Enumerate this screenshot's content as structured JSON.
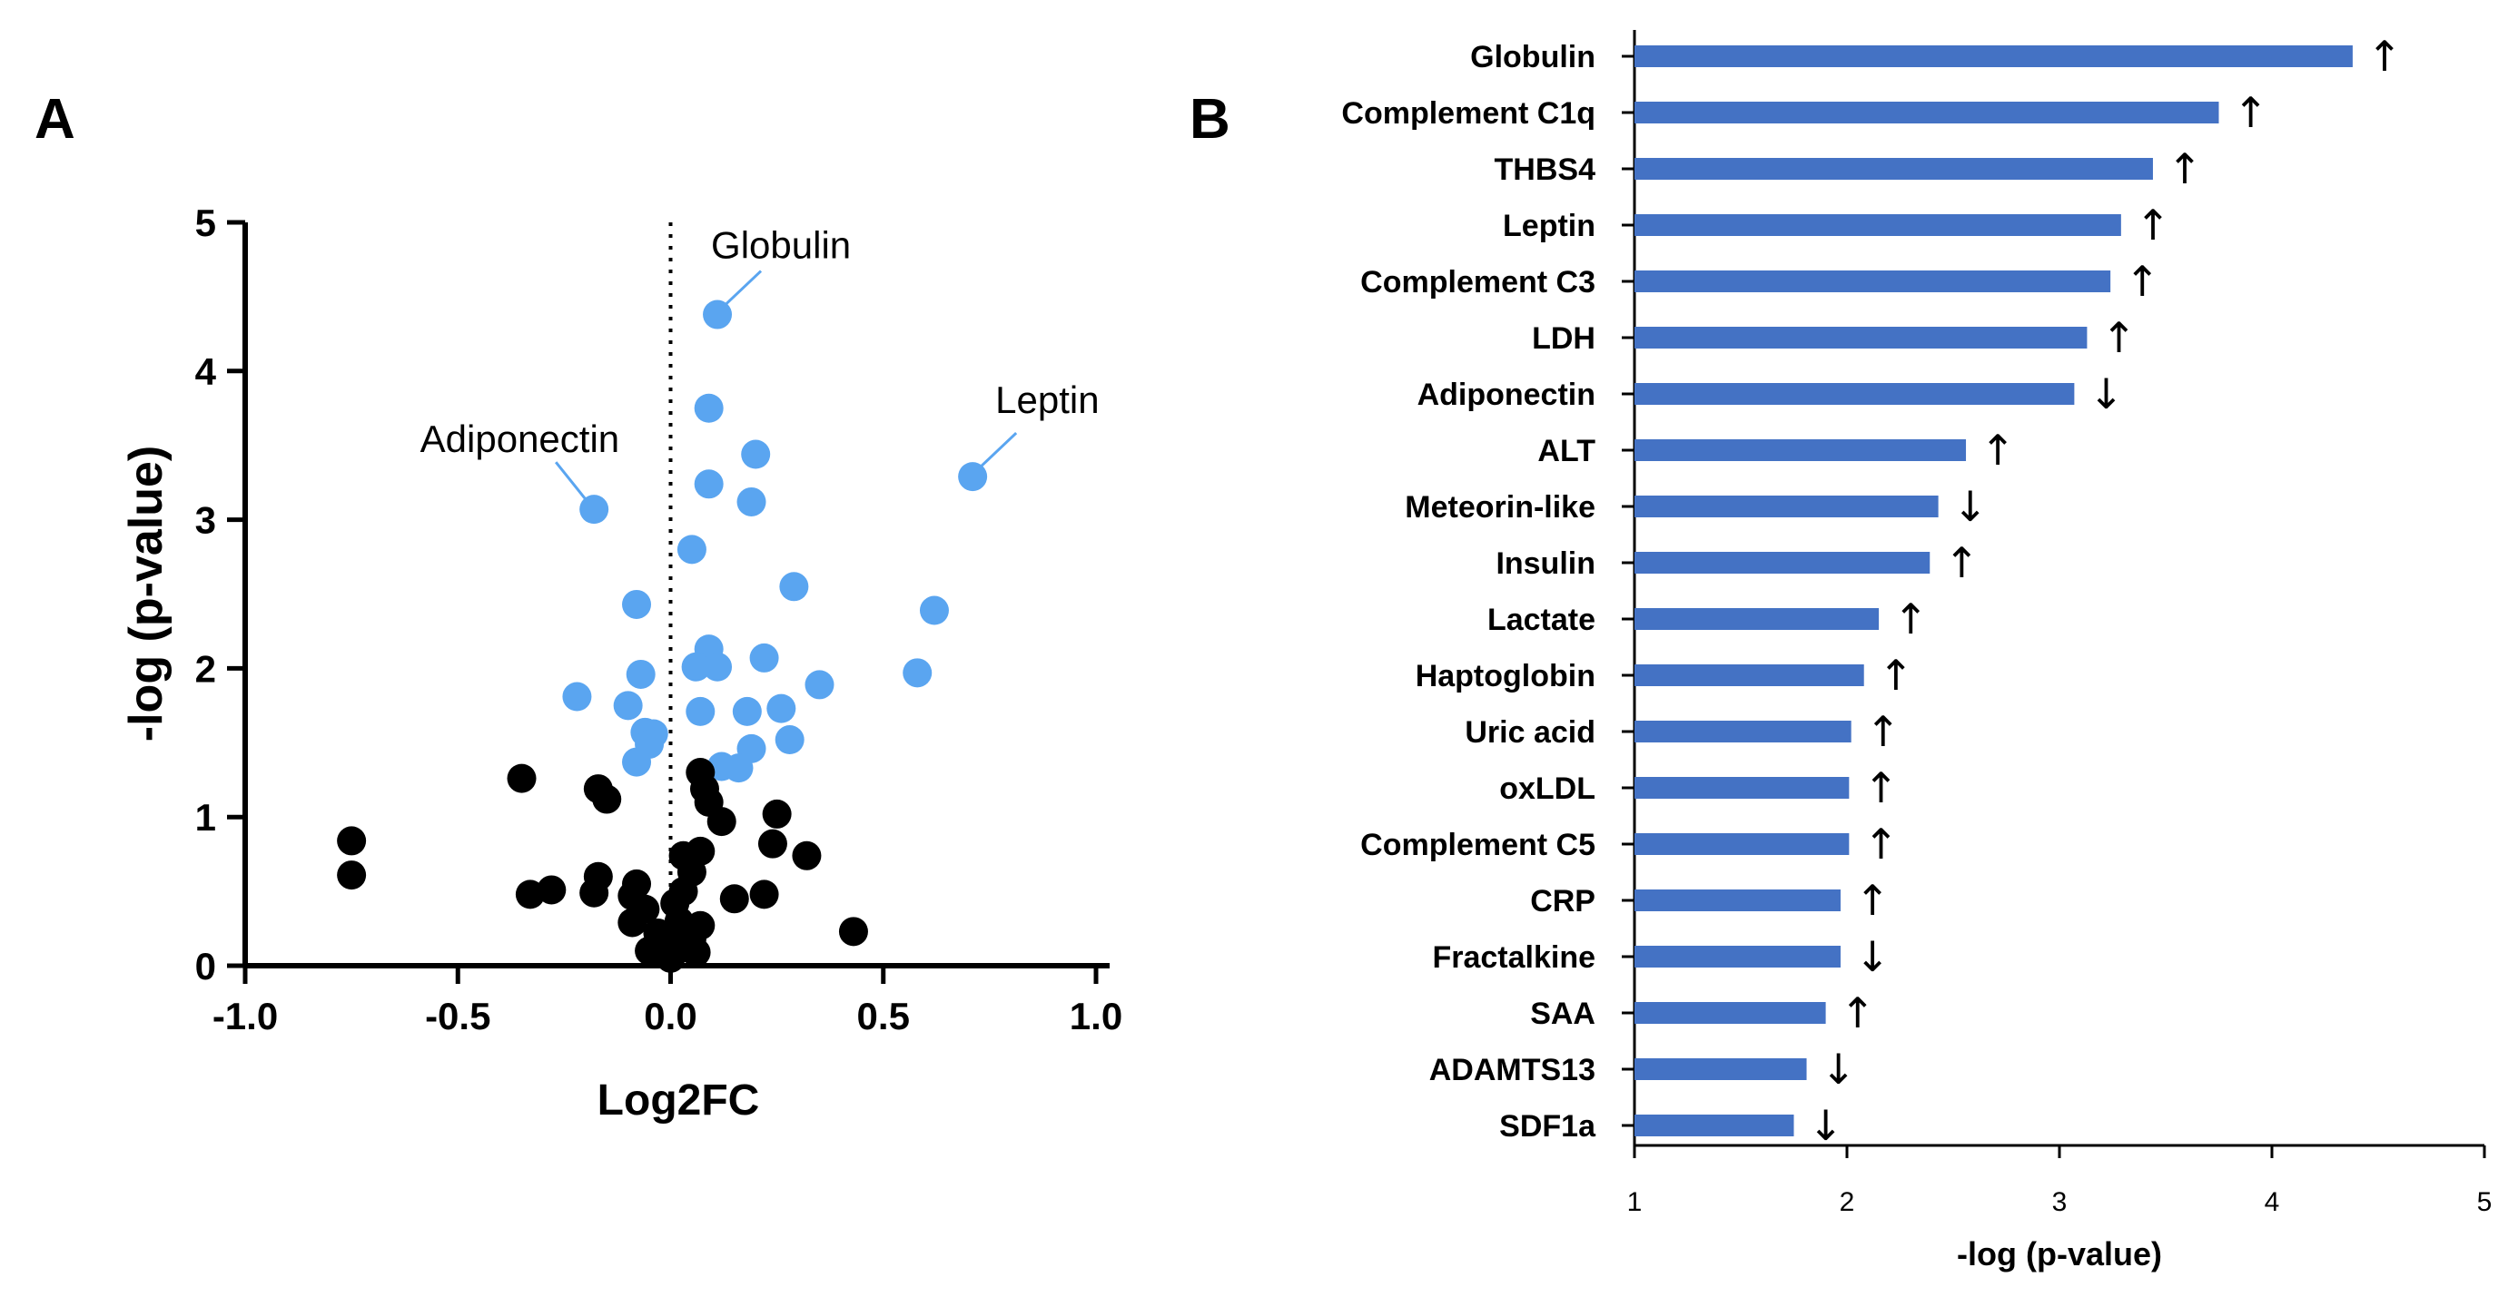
{
  "chart_data": [
    {
      "type": "scatter",
      "panel": "A",
      "xlabel": "Log2FC",
      "ylabel": "-log (p-value)",
      "xlim": [
        -1.0,
        1.0
      ],
      "ylim": [
        0,
        5
      ],
      "xticks": [
        "-1.0",
        "-0.5",
        "0.0",
        "0.5",
        "1.0"
      ],
      "yticks": [
        "0",
        "1",
        "2",
        "3",
        "4",
        "5"
      ],
      "reference_line": {
        "x": 0.0,
        "style": "dotted"
      },
      "colors": {
        "significant": "#5aa5f0",
        "nonsignificant": "#000000",
        "callout": "#5aa5f0"
      },
      "annotations": [
        {
          "text": "Globulin",
          "x": 0.11,
          "y": 4.38,
          "position": "above-right"
        },
        {
          "text": "Leptin",
          "x": 0.71,
          "y": 3.29,
          "position": "above-right"
        },
        {
          "text": "Adiponectin",
          "x": -0.18,
          "y": 3.07,
          "position": "above-left"
        }
      ],
      "series": [
        {
          "name": "significant",
          "points": [
            [
              0.11,
              4.38
            ],
            [
              0.09,
              3.75
            ],
            [
              0.2,
              3.44
            ],
            [
              0.09,
              3.24
            ],
            [
              0.19,
              3.12
            ],
            [
              0.71,
              3.29
            ],
            [
              -0.18,
              3.07
            ],
            [
              0.05,
              2.8
            ],
            [
              0.29,
              2.55
            ],
            [
              0.62,
              2.39
            ],
            [
              -0.08,
              2.43
            ],
            [
              0.09,
              2.13
            ],
            [
              0.06,
              2.01
            ],
            [
              0.11,
              2.01
            ],
            [
              0.22,
              2.07
            ],
            [
              0.58,
              1.97
            ],
            [
              0.35,
              1.89
            ],
            [
              -0.07,
              1.96
            ],
            [
              -0.22,
              1.81
            ],
            [
              -0.1,
              1.75
            ],
            [
              0.07,
              1.71
            ],
            [
              0.18,
              1.71
            ],
            [
              0.26,
              1.73
            ],
            [
              -0.06,
              1.57
            ],
            [
              -0.04,
              1.56
            ],
            [
              -0.05,
              1.49
            ],
            [
              0.19,
              1.46
            ],
            [
              0.28,
              1.52
            ],
            [
              -0.08,
              1.37
            ],
            [
              0.12,
              1.34
            ],
            [
              0.16,
              1.33
            ]
          ]
        },
        {
          "name": "nonsignificant",
          "points": [
            [
              -0.75,
              0.84
            ],
            [
              -0.75,
              0.61
            ],
            [
              -0.35,
              1.26
            ],
            [
              -0.17,
              1.19
            ],
            [
              -0.15,
              1.12
            ],
            [
              -0.33,
              0.48
            ],
            [
              -0.28,
              0.51
            ],
            [
              -0.17,
              0.6
            ],
            [
              -0.18,
              0.49
            ],
            [
              -0.08,
              0.55
            ],
            [
              -0.09,
              0.47
            ],
            [
              -0.06,
              0.38
            ],
            [
              -0.09,
              0.29
            ],
            [
              -0.03,
              0.22
            ],
            [
              -0.05,
              0.1
            ],
            [
              0.07,
              1.3
            ],
            [
              0.08,
              1.19
            ],
            [
              0.09,
              1.1
            ],
            [
              0.12,
              0.97
            ],
            [
              0.07,
              0.77
            ],
            [
              0.03,
              0.74
            ],
            [
              0.05,
              0.63
            ],
            [
              0.03,
              0.5
            ],
            [
              0.01,
              0.42
            ],
            [
              0.02,
              0.3
            ],
            [
              0.07,
              0.27
            ],
            [
              0.05,
              0.18
            ],
            [
              0.03,
              0.12
            ],
            [
              0.06,
              0.09
            ],
            [
              0.0,
              0.05
            ],
            [
              -0.01,
              0.15
            ],
            [
              0.15,
              0.45
            ],
            [
              0.22,
              0.48
            ],
            [
              0.24,
              0.82
            ],
            [
              0.25,
              1.02
            ],
            [
              0.32,
              0.74
            ],
            [
              0.43,
              0.23
            ]
          ]
        }
      ]
    },
    {
      "type": "bar",
      "panel": "B",
      "orientation": "horizontal",
      "xlabel": "-log (p-value)",
      "xlim": [
        1,
        5
      ],
      "xticks": [
        "1",
        "2",
        "3",
        "4",
        "5"
      ],
      "bar_color": "#4472c4",
      "categories": [
        "Globulin",
        "Complement C1q",
        "THBS4",
        "Leptin",
        "Complement C3",
        "LDH",
        "Adiponectin",
        "ALT",
        "Meteorin-like",
        "Insulin",
        "Lactate",
        "Haptoglobin",
        "Uric acid",
        "oxLDL",
        "Complement C5",
        "CRP",
        "Fractalkine",
        "SAA",
        "ADAMTS13",
        "SDF1a"
      ],
      "values": [
        4.38,
        3.75,
        3.44,
        3.29,
        3.24,
        3.13,
        3.07,
        2.56,
        2.43,
        2.39,
        2.15,
        2.08,
        2.02,
        2.01,
        2.01,
        1.97,
        1.97,
        1.9,
        1.81,
        1.75
      ],
      "direction": [
        "up",
        "up",
        "up",
        "up",
        "up",
        "up",
        "down",
        "up",
        "down",
        "up",
        "up",
        "up",
        "up",
        "up",
        "up",
        "up",
        "down",
        "up",
        "down",
        "down"
      ],
      "arrow_glyphs": {
        "up": "↑",
        "down": "↓"
      }
    }
  ]
}
